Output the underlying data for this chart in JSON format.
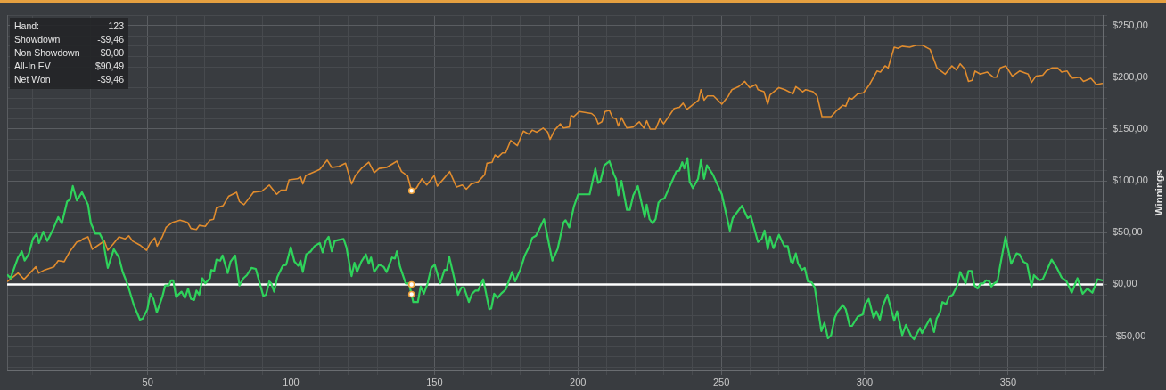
{
  "chart_data": {
    "type": "line",
    "ylabel": "Winnings",
    "grid": true,
    "xlim": [
      1,
      383
    ],
    "xticks": [
      {
        "value": 10,
        "label": null
      },
      {
        "value": 20,
        "label": null
      },
      {
        "value": 30,
        "label": null
      },
      {
        "value": 40,
        "label": null
      },
      50,
      {
        "value": 60,
        "label": null
      },
      {
        "value": 70,
        "label": null
      },
      {
        "value": 80,
        "label": null
      },
      {
        "value": 90,
        "label": null
      },
      100,
      {
        "value": 110,
        "label": null
      },
      {
        "value": 120,
        "label": null
      },
      {
        "value": 130,
        "label": null
      },
      {
        "value": 140,
        "label": null
      },
      150,
      {
        "value": 160,
        "label": null
      },
      {
        "value": 170,
        "label": null
      },
      {
        "value": 180,
        "label": null
      },
      {
        "value": 190,
        "label": null
      },
      200,
      {
        "value": 210,
        "label": null
      },
      {
        "value": 220,
        "label": null
      },
      {
        "value": 230,
        "label": null
      },
      {
        "value": 240,
        "label": null
      },
      250,
      {
        "value": 260,
        "label": null
      },
      {
        "value": 270,
        "label": null
      },
      {
        "value": 280,
        "label": null
      },
      {
        "value": 290,
        "label": null
      },
      300,
      {
        "value": 310,
        "label": null
      },
      {
        "value": 320,
        "label": null
      },
      {
        "value": 330,
        "label": null
      },
      {
        "value": 340,
        "label": null
      },
      350,
      {
        "value": 360,
        "label": null
      },
      {
        "value": 370,
        "label": null
      },
      {
        "value": 380,
        "label": null
      }
    ],
    "ylim": [
      -83,
      260
    ],
    "yticks": [
      {
        "value": -80,
        "label": null
      },
      {
        "value": -70,
        "label": null
      },
      {
        "value": -60,
        "label": null
      },
      {
        "value": -50,
        "label": "-$50,00"
      },
      {
        "value": -40,
        "label": null
      },
      {
        "value": -30,
        "label": null
      },
      {
        "value": -20,
        "label": null
      },
      {
        "value": -10,
        "label": null
      },
      {
        "value": 0,
        "label": "$0,00"
      },
      {
        "value": 10,
        "label": null
      },
      {
        "value": 20,
        "label": null
      },
      {
        "value": 30,
        "label": null
      },
      {
        "value": 40,
        "label": null
      },
      {
        "value": 50,
        "label": "$50,00"
      },
      {
        "value": 60,
        "label": null
      },
      {
        "value": 70,
        "label": null
      },
      {
        "value": 80,
        "label": null
      },
      {
        "value": 90,
        "label": null
      },
      {
        "value": 100,
        "label": "$100,00"
      },
      {
        "value": 110,
        "label": null
      },
      {
        "value": 120,
        "label": null
      },
      {
        "value": 130,
        "label": null
      },
      {
        "value": 140,
        "label": null
      },
      {
        "value": 150,
        "label": "$150,00"
      },
      {
        "value": 160,
        "label": null
      },
      {
        "value": 170,
        "label": null
      },
      {
        "value": 180,
        "label": null
      },
      {
        "value": 190,
        "label": null
      },
      {
        "value": 200,
        "label": "$200,00"
      },
      {
        "value": 210,
        "label": null
      },
      {
        "value": 220,
        "label": null
      },
      {
        "value": 230,
        "label": null
      },
      {
        "value": 240,
        "label": null
      },
      {
        "value": 250,
        "label": "$250,00"
      },
      {
        "value": 260,
        "label": null
      }
    ],
    "ref_lines": [
      {
        "axis": "y",
        "value": 0,
        "color": "#ffffff"
      }
    ],
    "annotations": [
      "Hand:",
      "123",
      "Showdown",
      "-$9,46",
      "Non Showdown",
      "$0,00",
      "All-In EV",
      "$90,49",
      "Net Won",
      "-$9,46"
    ],
    "series": [
      {
        "color": "#e08c2e",
        "x": [
          1.2,
          4.8,
          6.9,
          11,
          12,
          14.1,
          17.3,
          18.8,
          20.9,
          22.9,
          25.3,
          26.6,
          27.4,
          29.2,
          30.7,
          32.8,
          34.9,
          36.1,
          38,
          40,
          42.1,
          43.4,
          44.7,
          47.3,
          49.6,
          50.9,
          52.5,
          53.3,
          55.1,
          56.4,
          58.7,
          61.3,
          63.9,
          65.1,
          67,
          68,
          70.1,
          71.7,
          73,
          74,
          76.3,
          78.2,
          81,
          82,
          83.6,
          86.9,
          89.8,
          92.4,
          95,
          96.5,
          98.3,
          99.3,
          102.2,
          103.3,
          104.1,
          105.1,
          110,
          112.6,
          114.2,
          116.7,
          119,
          121.1,
          122.4,
          124.5,
          127.1,
          129,
          130.7,
          133.3,
          136.9,
          138.5,
          140.6,
          142,
          143.7,
          145.6,
          147.3,
          149.9,
          151,
          153.5,
          155.3,
          157.7,
          159.7,
          161.1,
          162.8,
          165.2,
          167.5,
          168.3,
          170.1,
          171.1,
          172.2,
          173.7,
          174.8,
          176.6,
          178.9,
          181,
          182.9,
          184.1,
          185.7,
          187.9,
          189.5,
          190.3,
          191.9,
          193.9,
          195,
          197,
          197.6,
          198.6,
          200.5,
          204.8,
          206.1,
          207.1,
          208.4,
          209.5,
          211,
          212.1,
          213.3,
          214.1,
          215.2,
          217.1,
          219.3,
          221.4,
          223,
          224,
          225.2,
          227.1,
          228.6,
          229.9,
          233.6,
          235.4,
          236.7,
          238,
          242.1,
          242.9,
          244,
          245.2,
          247.3,
          250.2,
          252.5,
          253.7,
          256.1,
          258.2,
          259.9,
          262,
          262.8,
          264.9,
          266.2,
          267,
          270.1,
          272.2,
          275,
          276,
          278.4,
          279.4,
          282,
          283.4,
          285.1,
          288.3,
          290.3,
          292.4,
          293.4,
          294.5,
          295.6,
          297.6,
          299.6,
          301.7,
          304.3,
          305.5,
          307.1,
          308.2,
          310.3,
          311.6,
          313.1,
          315.7,
          318,
          320.1,
          322.8,
          325.2,
          328.1,
          330.4,
          332,
          333.3,
          334.9,
          336.2,
          337.5,
          338.5,
          340.3,
          342.7,
          344.9,
          346,
          347.3,
          349.2,
          351.5,
          354,
          357,
          358.2,
          359.7,
          362.1,
          363.3,
          365.4,
          367.3,
          368.7,
          370.6,
          372.2,
          375,
          376.3,
          378.9,
          380.8,
          382.8
        ],
        "values": [
          3,
          11,
          5,
          17,
          11,
          14,
          17,
          23,
          22,
          32,
          41,
          42,
          44,
          46,
          34,
          38,
          42,
          33,
          39,
          46,
          44,
          47,
          42,
          38,
          33,
          40,
          45,
          37,
          46,
          55,
          60,
          62,
          60,
          54,
          53,
          57,
          56,
          62,
          63,
          74,
          76,
          85,
          89,
          80,
          77,
          89,
          90,
          96,
          87,
          91,
          91,
          101,
          102,
          104,
          97,
          105,
          111,
          120,
          113,
          114,
          117,
          97,
          105,
          112,
          118,
          108,
          112,
          113,
          119,
          109,
          105,
          90.49,
          93,
          102,
          96,
          105,
          95,
          103,
          109,
          94,
          96,
          92,
          97,
          99,
          106,
          117,
          118,
          125,
          123,
          127,
          127,
          139,
          134,
          148,
          145,
          149,
          147,
          151,
          147,
          140,
          149,
          155,
          151,
          152,
          163,
          162,
          167,
          165,
          162,
          155,
          157,
          167,
          168,
          161,
          160,
          153,
          161,
          151,
          152,
          157,
          151,
          158,
          150,
          150,
          160,
          155,
          170,
          171,
          175,
          169,
          178,
          188,
          178,
          182,
          182,
          174,
          182,
          188,
          191,
          196,
          190,
          193,
          188,
          186,
          174,
          183,
          190,
          188,
          184,
          191,
          186,
          188,
          186,
          182,
          162,
          162,
          168,
          173,
          172,
          180,
          179,
          184,
          185,
          193,
          206,
          205,
          211,
          209,
          229,
          228,
          230,
          229,
          231,
          231,
          227,
          209,
          203,
          211,
          207,
          213,
          208,
          196,
          197,
          206,
          203,
          205,
          200,
          200,
          209,
          211,
          201,
          206,
          203,
          195,
          201,
          202,
          206,
          209,
          209,
          205,
          206,
          199,
          200,
          196,
          199,
          193,
          194
        ]
      },
      {
        "color": "#2fd35b",
        "x": [
          1.2,
          2.2,
          4.8,
          6.1,
          7.1,
          8.5,
          10,
          11.3,
          12.1,
          13.6,
          15,
          17,
          18.8,
          20.1,
          21.9,
          22.9,
          23.9,
          25.3,
          27.1,
          29.2,
          30.2,
          31.8,
          33.3,
          34.4,
          36.1,
          38.2,
          40,
          41.3,
          43,
          45.2,
          47.3,
          48.3,
          49.9,
          50.9,
          52,
          53.2,
          55.1,
          56.1,
          57.4,
          58.2,
          58.9,
          59.9,
          61.8,
          63,
          64.1,
          65.1,
          66.2,
          67,
          68,
          69.1,
          70.1,
          71.7,
          72.2,
          73.2,
          74,
          75.3,
          76.1,
          77.9,
          78.9,
          80.5,
          82,
          83.4,
          84.6,
          86.2,
          87.7,
          90.3,
          91.3,
          92.4,
          93.1,
          94.1,
          95.2,
          97.1,
          98.3,
          99.9,
          101.2,
          102.5,
          103.3,
          104.1,
          105.3,
          106.9,
          108.2,
          110,
          111,
          112.1,
          113.1,
          114.2,
          115.2,
          116.7,
          118.3,
          119.3,
          121.1,
          122.1,
          123,
          124.5,
          126.1,
          127.1,
          127.9,
          129,
          130.7,
          132.3,
          133.3,
          135.2,
          136.2,
          136.9,
          138,
          140,
          141.1,
          142,
          142.6,
          144.2,
          145.2,
          146.3,
          147.6,
          148.9,
          150.1,
          152,
          153.5,
          154.3,
          155.1,
          156.3,
          158.2,
          159.4,
          160.3,
          162,
          163.1,
          164.2,
          165.2,
          167,
          169.1,
          169.8,
          170.8,
          172,
          173.2,
          174.8,
          177.1,
          178.1,
          179.9,
          181.5,
          183.1,
          184.1,
          185.4,
          188.2,
          191.1,
          192.9,
          195,
          195.7,
          197,
          198.6,
          200.1,
          201.7,
          204.1,
          206.1,
          207.1,
          207.9,
          209.2,
          211,
          212.6,
          213.3,
          214.1,
          215.2,
          217.1,
          218.1,
          219.3,
          220.9,
          223.3,
          224,
          225,
          226.1,
          227.1,
          228.1,
          229.2,
          230.2,
          234.3,
          235.4,
          236.4,
          237.1,
          238.2,
          239,
          240.1,
          241.9,
          242.9,
          244,
          245,
          247.1,
          250.2,
          251.4,
          253,
          254,
          257.2,
          259.2,
          260.3,
          262.8,
          264.1,
          265.1,
          266.2,
          267,
          268.2,
          270.1,
          272,
          273.2,
          274.3,
          275,
          276,
          276.8,
          278.1,
          279.1,
          280.2,
          281.5,
          282.6,
          284.9,
          286,
          287.2,
          288.3,
          289.6,
          290.6,
          292.4,
          293.4,
          294.8,
          295.6,
          297.6,
          299.3,
          300.2,
          301.4,
          303.1,
          304.1,
          305.3,
          306.4,
          307.9,
          310.3,
          311.3,
          313.1,
          314.4,
          316.2,
          317.2,
          319.3,
          320,
          321.4,
          322.8,
          324.2,
          325.1,
          326.3,
          327.1,
          328.4,
          329.4,
          330.7,
          332.3,
          333.3,
          335.2,
          336.2,
          337.3,
          338.3,
          339.4,
          340.4,
          341.4,
          342.4,
          343.5,
          344.2,
          345.2,
          346.3,
          347.3,
          349.1,
          351.1,
          353,
          354,
          355.3,
          356.6,
          358.2,
          359,
          360.8,
          362.1,
          365.2,
          367,
          368.6,
          370.4,
          372.2,
          374.2,
          376,
          377.7,
          379.4,
          381.2,
          382.8
        ],
        "values": [
          9,
          6,
          26,
          32,
          23,
          29,
          44,
          49,
          40,
          51,
          42,
          53,
          65,
          59,
          80,
          82,
          95,
          81,
          89,
          77,
          59,
          49,
          49,
          43,
          16,
          34,
          26,
          12,
          0,
          -20,
          -34,
          -33,
          -24,
          -9,
          -14,
          -27,
          -12,
          -1,
          -1,
          4,
          4,
          -12,
          -7,
          -13,
          -4,
          -14,
          -15,
          -6,
          -10,
          6,
          1,
          6,
          14,
          13,
          24,
          23,
          28,
          11,
          22,
          28,
          -1,
          6,
          9,
          16,
          15,
          -11,
          -10,
          3,
          1,
          -7,
          7,
          18,
          19,
          36,
          22,
          18,
          23,
          12,
          29,
          32,
          37,
          40,
          31,
          42,
          46,
          32,
          42,
          43,
          44,
          36,
          8,
          21,
          12,
          22,
          29,
          20,
          26,
          12,
          19,
          17,
          12,
          26,
          25,
          32,
          17,
          1,
          1,
          -9.46,
          -17,
          -17,
          -2,
          -9,
          1,
          16,
          19,
          1,
          14,
          14,
          27,
          13,
          -10,
          -3,
          -3,
          -17,
          -9,
          -6,
          -6,
          5,
          -24,
          -23,
          -9,
          -13,
          -9,
          -5,
          12,
          3,
          14,
          28,
          37,
          45,
          47,
          63,
          23,
          34,
          60,
          62,
          55,
          75,
          87,
          87,
          87,
          112,
          98,
          100,
          115,
          119,
          106,
          102,
          86,
          100,
          72,
          72,
          86,
          95,
          65,
          77,
          63,
          59,
          63,
          79,
          82,
          83,
          109,
          110,
          118,
          112,
          122,
          99,
          93,
          102,
          120,
          102,
          115,
          106,
          87,
          72,
          52,
          64,
          76,
          64,
          66,
          41,
          44,
          52,
          34,
          46,
          35,
          48,
          37,
          37,
          22,
          21,
          30,
          20,
          14,
          16,
          3,
          2,
          -3,
          -45,
          -37,
          -52,
          -49,
          -32,
          -26,
          -20,
          -24,
          -40,
          -40,
          -31,
          -29,
          -19,
          -14,
          -32,
          -26,
          -34,
          -20,
          -10,
          -35,
          -26,
          -49,
          -39,
          -50,
          -53,
          -42,
          -47,
          -40,
          -33,
          -46,
          -33,
          -27,
          -17,
          -19,
          -12,
          -10,
          -1,
          12,
          1,
          13,
          13,
          -1,
          -4,
          1,
          1,
          4,
          3,
          -2,
          1,
          3,
          19,
          46,
          20,
          30,
          29,
          22,
          20,
          -2,
          9,
          4,
          5,
          24,
          16,
          7,
          3,
          -8,
          6,
          -9,
          -4,
          -8,
          5,
          4
        ]
      },
      {
        "type": "scatter",
        "marker": "circle",
        "color": "#eea23c",
        "x": [
          142,
          142,
          142
        ],
        "values": [
          90.49,
          0,
          -9.46
        ]
      }
    ]
  }
}
